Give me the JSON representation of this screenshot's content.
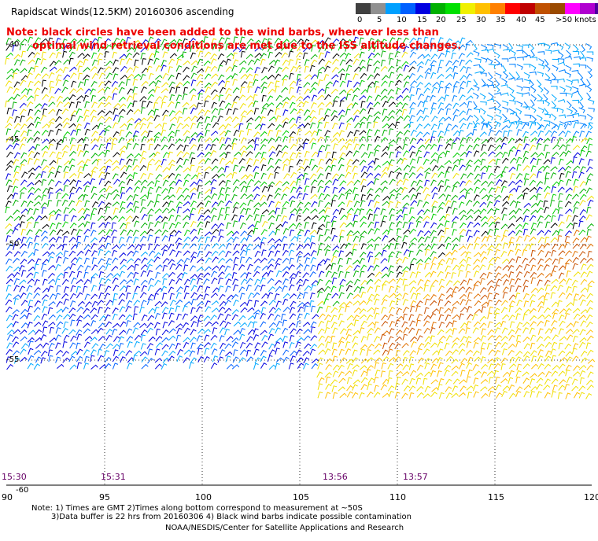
{
  "title": "Rapidscat Winds(12.5KM) 20160306 ascending",
  "note": {
    "line1": "Note: black circles have been added to the wind barbs, wherever less than",
    "line2": "optimal wind retrieval conditions are met due to the ISS altitude changes."
  },
  "scale": {
    "colors": [
      "#404040",
      "#909090",
      "#00a0ff",
      "#0060ff",
      "#0000e0",
      "#00b000",
      "#00e000",
      "#f0f000",
      "#ffc000",
      "#ff8000",
      "#ff0000",
      "#c00000",
      "#c05000",
      "#9a4a00",
      "#ff00ff",
      "#b000d0",
      "#5000a0"
    ],
    "labels": [
      "0",
      "5",
      "10",
      "15",
      "20",
      "25",
      "30",
      "35",
      "40",
      "45",
      ">50 knots"
    ]
  },
  "axes": {
    "lat_labels": [
      "-40",
      "-45",
      "-50",
      "-55",
      "-60"
    ],
    "lon_labels": [
      "90",
      "95",
      "100",
      "105",
      "110",
      "115",
      "120"
    ]
  },
  "pass_times": [
    "15:30",
    "15:31",
    "13:56",
    "13:57"
  ],
  "footer": {
    "line1": "Note: 1) Times are GMT 2)Times along bottom correspond to measurement at ~50S",
    "line2": "3)Data buffer is 22 hrs from 20160306 4) Black wind barbs indicate possible contamination",
    "line3": "NOAA/NESDIS/Center for Satellite Applications and Research"
  }
}
